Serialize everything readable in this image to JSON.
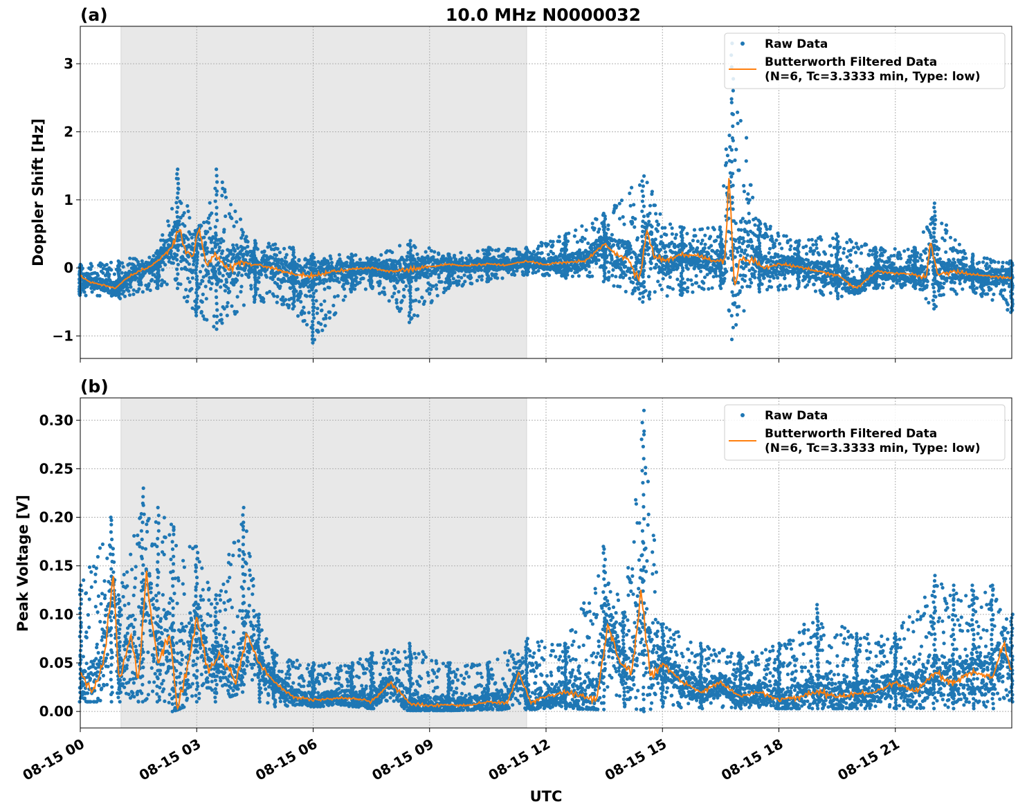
{
  "chart_data": [
    {
      "type": "scatter",
      "panel_label": "(a)",
      "title": "10.0 MHz N0000032",
      "xlabel": "",
      "ylabel": "Doppler Shift [Hz]",
      "xlim": [
        0,
        24
      ],
      "ylim": [
        -1.33,
        3.55
      ],
      "yticks": [
        -1,
        0,
        1,
        2,
        3
      ],
      "ytick_labels": [
        "−1",
        "0",
        "1",
        "2",
        "3"
      ],
      "shaded_x_range": [
        1.05,
        11.5
      ],
      "grid": true,
      "legend_placement": "upper-right",
      "colors": {
        "raw": "#1f77b4",
        "filtered": "#ff7f0e",
        "shade": "#e8e8e8"
      },
      "series": [
        {
          "name": "Raw Data",
          "style": "points"
        },
        {
          "name": "Butterworth Filtered Data\n(N=6, Tc=3.3333 min, Type: low)",
          "style": "line"
        }
      ],
      "filtered_curve": {
        "x": [
          0,
          0.3,
          0.6,
          0.9,
          1.2,
          1.5,
          1.8,
          2.1,
          2.4,
          2.55,
          2.7,
          2.9,
          3.05,
          3.25,
          3.5,
          3.8,
          4.1,
          4.5,
          5.0,
          5.5,
          6.0,
          6.5,
          7.0,
          7.5,
          8.0,
          8.5,
          9.0,
          9.5,
          10.0,
          10.5,
          11.0,
          11.5,
          12.0,
          12.5,
          13.0,
          13.5,
          13.8,
          14.1,
          14.4,
          14.6,
          14.8,
          15.1,
          15.5,
          15.9,
          16.3,
          16.6,
          16.72,
          16.85,
          17.0,
          17.3,
          17.6,
          18.0,
          18.5,
          19.0,
          19.5,
          20.0,
          20.5,
          21.0,
          21.5,
          21.8,
          21.9,
          22.1,
          22.5,
          23.0,
          23.5,
          24.0
        ],
        "y": [
          -0.12,
          -0.22,
          -0.25,
          -0.3,
          -0.15,
          -0.05,
          0.02,
          0.15,
          0.35,
          0.6,
          0.25,
          0.15,
          0.6,
          0.05,
          0.18,
          -0.05,
          0.1,
          0.05,
          0.0,
          -0.1,
          -0.12,
          -0.05,
          -0.02,
          0.0,
          -0.05,
          -0.02,
          0.02,
          0.05,
          0.03,
          0.06,
          0.04,
          0.1,
          0.05,
          0.08,
          0.1,
          0.35,
          0.2,
          0.15,
          -0.2,
          0.55,
          0.15,
          0.12,
          0.2,
          0.18,
          0.1,
          0.12,
          1.38,
          -0.3,
          0.1,
          0.12,
          0.0,
          0.05,
          0.02,
          -0.05,
          -0.1,
          -0.3,
          -0.05,
          -0.08,
          -0.1,
          -0.15,
          0.38,
          -0.1,
          -0.05,
          -0.1,
          -0.12,
          -0.15
        ]
      },
      "raw_envelope": {
        "x": [
          0,
          1.0,
          2.0,
          2.5,
          3.0,
          3.5,
          4.5,
          5.5,
          6.0,
          7.0,
          7.5,
          8.5,
          9.5,
          10.5,
          11.5,
          12.5,
          13.5,
          14.5,
          15.5,
          16.5,
          16.8,
          17.5,
          18.5,
          19.5,
          20.5,
          21.5,
          22.0,
          23.0,
          24.0
        ],
        "upper": [
          0.05,
          0.1,
          0.25,
          1.45,
          0.5,
          1.45,
          0.4,
          0.3,
          0.2,
          0.2,
          0.15,
          0.4,
          0.2,
          0.3,
          0.3,
          0.5,
          0.8,
          1.35,
          0.6,
          0.6,
          3.3,
          0.7,
          0.4,
          0.5,
          0.3,
          0.3,
          0.95,
          0.2,
          0.1
        ],
        "lower": [
          -0.4,
          -0.45,
          -0.3,
          -0.3,
          -0.7,
          -0.9,
          -0.5,
          -0.6,
          -1.1,
          -0.35,
          -0.3,
          -0.8,
          -0.3,
          -0.2,
          -0.1,
          -0.15,
          -0.2,
          -0.5,
          -0.4,
          -0.3,
          -1.05,
          -0.35,
          -0.3,
          -0.45,
          -0.3,
          -0.3,
          -0.6,
          -0.35,
          -0.65
        ]
      }
    },
    {
      "type": "scatter",
      "panel_label": "(b)",
      "title": "",
      "xlabel": "UTC",
      "ylabel": "Peak Voltage [V]",
      "xlim": [
        0,
        24
      ],
      "ylim": [
        -0.017,
        0.323
      ],
      "yticks": [
        0.0,
        0.05,
        0.1,
        0.15,
        0.2,
        0.25,
        0.3
      ],
      "ytick_labels": [
        "0.00",
        "0.05",
        "0.10",
        "0.15",
        "0.20",
        "0.25",
        "0.30"
      ],
      "xticks": [
        0,
        3,
        6,
        9,
        12,
        15,
        18,
        21
      ],
      "xtick_labels": [
        "08-15 00",
        "08-15 03",
        "08-15 06",
        "08-15 09",
        "08-15 12",
        "08-15 15",
        "08-15 18",
        "08-15 21"
      ],
      "shaded_x_range": [
        1.05,
        11.5
      ],
      "grid": true,
      "legend_placement": "upper-right",
      "colors": {
        "raw": "#1f77b4",
        "filtered": "#ff7f0e",
        "shade": "#e8e8e8"
      },
      "series": [
        {
          "name": "Raw Data",
          "style": "points"
        },
        {
          "name": "Butterworth Filtered Data\n(N=6, Tc=3.3333 min, Type: low)",
          "style": "line"
        }
      ],
      "filtered_curve": {
        "x": [
          0,
          0.3,
          0.6,
          0.85,
          1.0,
          1.3,
          1.5,
          1.7,
          2.0,
          2.3,
          2.5,
          2.8,
          3.0,
          3.3,
          3.6,
          4.0,
          4.3,
          4.6,
          5.0,
          5.5,
          6.0,
          7.0,
          7.5,
          8.0,
          8.5,
          9.0,
          9.5,
          10.0,
          10.5,
          11.0,
          11.3,
          11.6,
          12.0,
          12.5,
          13.0,
          13.3,
          13.6,
          13.9,
          14.2,
          14.45,
          14.7,
          15.0,
          15.5,
          16.0,
          16.5,
          17.0,
          17.5,
          18.0,
          18.5,
          19.0,
          19.5,
          20.0,
          20.5,
          21.0,
          21.5,
          22.0,
          22.5,
          23.0,
          23.5,
          23.8,
          24.0
        ],
        "y": [
          0.04,
          0.02,
          0.05,
          0.14,
          0.03,
          0.08,
          0.03,
          0.14,
          0.05,
          0.08,
          0.003,
          0.05,
          0.1,
          0.04,
          0.06,
          0.03,
          0.08,
          0.05,
          0.03,
          0.015,
          0.012,
          0.014,
          0.01,
          0.03,
          0.008,
          0.006,
          0.007,
          0.006,
          0.01,
          0.008,
          0.04,
          0.01,
          0.015,
          0.02,
          0.015,
          0.01,
          0.09,
          0.05,
          0.04,
          0.12,
          0.035,
          0.05,
          0.03,
          0.02,
          0.03,
          0.015,
          0.02,
          0.012,
          0.015,
          0.02,
          0.015,
          0.018,
          0.02,
          0.03,
          0.02,
          0.04,
          0.03,
          0.04,
          0.035,
          0.07,
          0.04
        ]
      },
      "raw_envelope": {
        "x": [
          0,
          0.8,
          1.0,
          1.6,
          2.0,
          2.4,
          3.0,
          3.5,
          4.2,
          4.6,
          5.0,
          6.0,
          7.0,
          7.5,
          8.5,
          9.5,
          10.5,
          11.5,
          12.5,
          13.5,
          14.0,
          14.5,
          15.0,
          16.0,
          17.0,
          18.0,
          19.0,
          20.0,
          21.0,
          22.0,
          22.5,
          23.0,
          23.5,
          24.0
        ],
        "upper": [
          0.13,
          0.2,
          0.12,
          0.23,
          0.21,
          0.19,
          0.17,
          0.12,
          0.21,
          0.1,
          0.06,
          0.05,
          0.05,
          0.06,
          0.07,
          0.05,
          0.05,
          0.075,
          0.07,
          0.17,
          0.1,
          0.31,
          0.09,
          0.07,
          0.06,
          0.07,
          0.11,
          0.08,
          0.08,
          0.14,
          0.13,
          0.13,
          0.13,
          0.1
        ],
        "lower": [
          0.01,
          0.01,
          0.01,
          0.01,
          0.01,
          0.0,
          0.01,
          0.01,
          0.02,
          0.01,
          0.005,
          0.005,
          0.005,
          0.003,
          0.001,
          0.001,
          0.002,
          0.002,
          0.003,
          0.002,
          0.005,
          0.0,
          0.005,
          0.003,
          0.003,
          0.003,
          0.003,
          0.003,
          0.003,
          0.003,
          0.003,
          0.003,
          0.003,
          0.01
        ]
      }
    }
  ]
}
